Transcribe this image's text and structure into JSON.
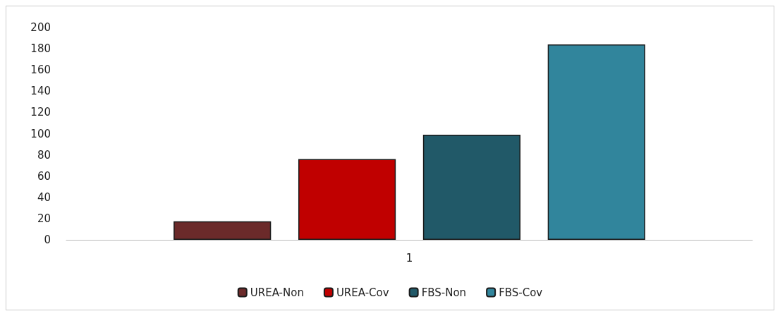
{
  "chart_data": {
    "type": "bar",
    "categories": [
      "1"
    ],
    "series": [
      {
        "name": "UREA-Non",
        "color": "#6b2a2a",
        "values": [
          17.5
        ]
      },
      {
        "name": "UREA-Cov",
        "color": "#c00000",
        "values": [
          76
        ]
      },
      {
        "name": "FBS-Non",
        "color": "#215968",
        "values": [
          99
        ]
      },
      {
        "name": "FBS-Cov",
        "color": "#31859c",
        "values": [
          184
        ]
      }
    ],
    "ylim": [
      0,
      200
    ],
    "yticks": [
      0,
      20,
      40,
      60,
      80,
      100,
      120,
      140,
      160,
      180,
      200
    ],
    "grid": false,
    "legend": "bottom"
  }
}
